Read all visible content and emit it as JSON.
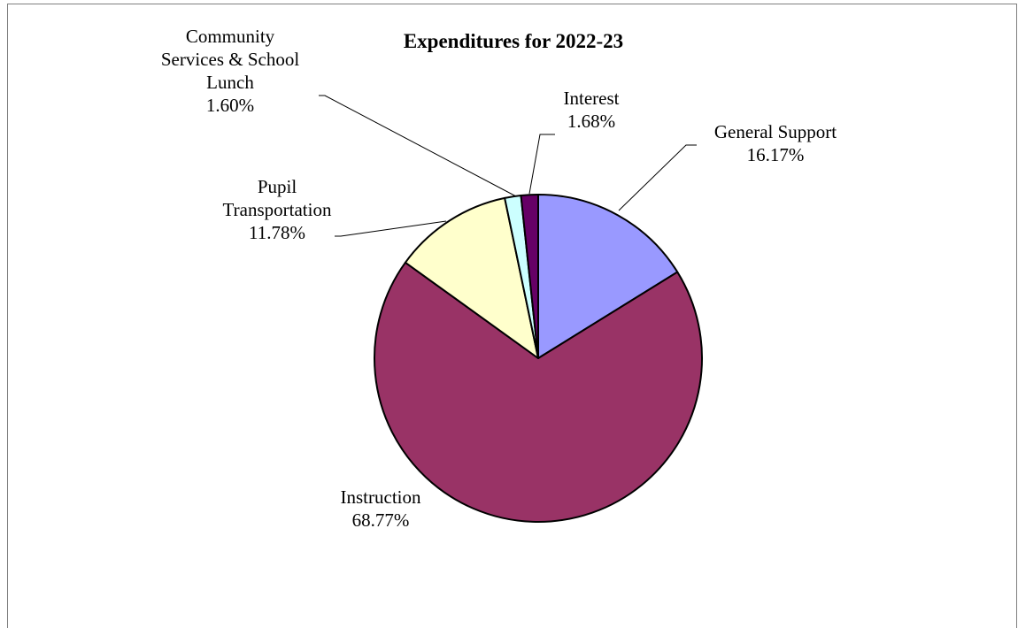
{
  "chart_data": {
    "type": "pie",
    "title": "Expenditures for 2022-23",
    "slices": [
      {
        "label": [
          "General Support"
        ],
        "value_label": "16.17%",
        "value": 16.17,
        "color": "#9999ff"
      },
      {
        "label": [
          "Instruction"
        ],
        "value_label": "68.77%",
        "value": 68.77,
        "color": "#993366"
      },
      {
        "label": [
          "Pupil",
          "Transportation"
        ],
        "value_label": "11.78%",
        "value": 11.78,
        "color": "#ffffcc"
      },
      {
        "label": [
          "Community",
          "Services & School",
          "Lunch"
        ],
        "value_label": "1.60%",
        "value": 1.6,
        "color": "#ccffff"
      },
      {
        "label": [
          "Interest"
        ],
        "value_label": "1.68%",
        "value": 1.68,
        "color": "#660066"
      }
    ]
  }
}
